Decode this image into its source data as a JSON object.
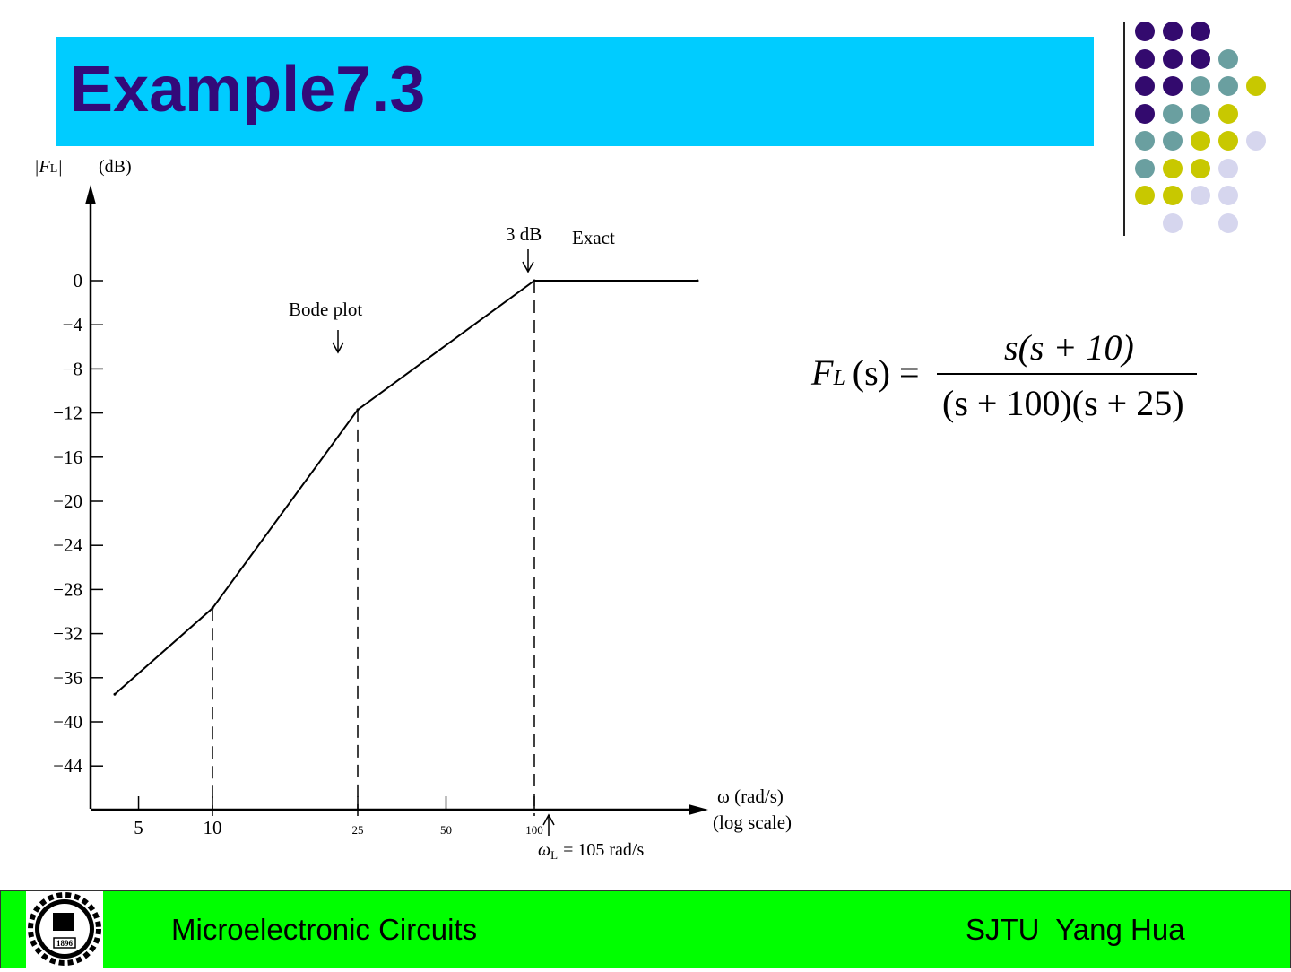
{
  "slide": {
    "title": "Example7.3"
  },
  "formula": {
    "lhs_f": "F",
    "lhs_sub": "L",
    "lhs_rest": "(s) =",
    "numerator": "s(s + 10)",
    "denominator": "(s + 100)(s + 25)"
  },
  "footer": {
    "left": "Microelectronic Circuits",
    "right": "SJTU  Yang Hua",
    "logo_text": "1896"
  },
  "decor": {
    "colors": {
      "P": "#330a6e",
      "T": "#6a9fa0",
      "Y": "#c8c800",
      "L": "#d6d6ee"
    },
    "grid": [
      "PPP..",
      "PPPT.",
      "PPTTY",
      "PTTY.",
      "TTYYL",
      "TYYL.",
      "YYLL.",
      ".L.L."
    ]
  },
  "chart_data": {
    "type": "line",
    "ylabel": "|F_L| (dB)",
    "ylabel_f": "F",
    "ylabel_sub": "L",
    "ylabel_unit": "(dB)",
    "xlabel": "ω (rad/s)",
    "xlabel2": "(log scale)",
    "x_scale": "log",
    "y_ticks": [
      0,
      -4,
      -8,
      -12,
      -16,
      -20,
      -24,
      -28,
      -32,
      -36,
      -40,
      -44
    ],
    "y_tick_labels": [
      "0",
      "−4",
      "−8",
      "−12",
      "−16",
      "−20",
      "−24",
      "−28",
      "−32",
      "−36",
      "−40",
      "−44"
    ],
    "x_tick_labels": [
      {
        "v": 5,
        "t": "5"
      },
      {
        "v": 10,
        "t": "10"
      },
      {
        "v": 25,
        "t": "25"
      },
      {
        "v": 50,
        "t": "50"
      },
      {
        "v": 100,
        "t": "100"
      }
    ],
    "series": [
      {
        "x": [
          4,
          10,
          25,
          100,
          400
        ],
        "y": [
          -37.5,
          -29.7,
          -11.7,
          0,
          0
        ]
      }
    ],
    "dashed_verticals": [
      10,
      25,
      100
    ],
    "annotations": {
      "bode": "Bode plot",
      "three_db": "3 dB",
      "exact": "Exact",
      "omega_l_sym": "ω",
      "omega_l_sub": "L",
      "omega_l_rest": "=   105  rad/s"
    },
    "grid": false
  }
}
